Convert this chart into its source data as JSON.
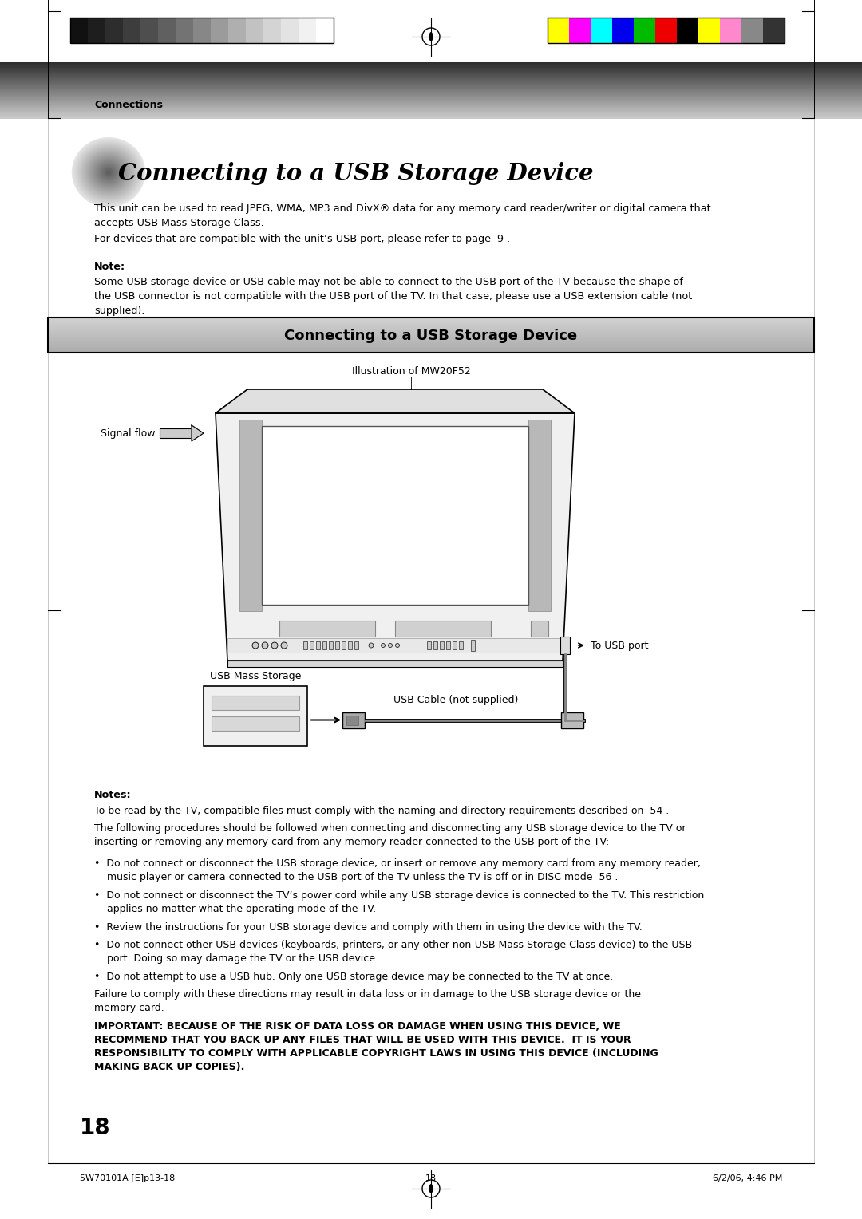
{
  "page_bg": "#ffffff",
  "connections_label": "Connections",
  "title_text": "Connecting to a USB Storage Device",
  "intro_text1": "This unit can be used to read JPEG, WMA, MP3 and DivX® data for any memory card reader/writer or digital camera that\naccepts USB Mass Storage Class.",
  "intro_text2": "For devices that are compatible with the unit’s USB port, please refer to page  9 .",
  "note_label": "Note:",
  "note_text": "Some USB storage device or USB cable may not be able to connect to the USB port of the TV because the shape of\nthe USB connector is not compatible with the USB port of the TV. In that case, please use a USB extension cable (not\nsupplied).",
  "section_box_text": "Connecting to a USB Storage Device",
  "illus_label": "Illustration of MW20F52",
  "signal_flow_label": "Signal flow",
  "usb_mass_label": "USB Mass Storage",
  "usb_cable_label": "USB Cable (not supplied)",
  "to_usb_label": "To USB port",
  "notes_bold": "Notes:",
  "notes_text1": "To be read by the TV, compatible files must comply with the naming and directory requirements described on  54 .",
  "notes_text2": "The following procedures should be followed when connecting and disconnecting any USB storage device to the TV or\ninserting or removing any memory card from any memory reader connected to the USB port of the TV:",
  "bullet1": "•  Do not connect or disconnect the USB storage device, or insert or remove any memory card from any memory reader,\n    music player or camera connected to the USB port of the TV unless the TV is off or in DISC mode  56 .",
  "bullet2": "•  Do not connect or disconnect the TV’s power cord while any USB storage device is connected to the TV. This restriction\n    applies no matter what the operating mode of the TV.",
  "bullet3": "•  Review the instructions for your USB storage device and comply with them in using the device with the TV.",
  "bullet4": "•  Do not connect other USB devices (keyboards, printers, or any other non-USB Mass Storage Class device) to the USB\n    port. Doing so may damage the TV or the USB device.",
  "bullet5": "•  Do not attempt to use a USB hub. Only one USB storage device may be connected to the TV at once.",
  "failure_text": "Failure to comply with these directions may result in data loss or in damage to the USB storage device or the\nmemory card.",
  "important_text": "IMPORTANT: BECAUSE OF THE RISK OF DATA LOSS OR DAMAGE WHEN USING THIS DEVICE, WE\nRECOMMEND THAT YOU BACK UP ANY FILES THAT WILL BE USED WITH THIS DEVICE.  IT IS YOUR\nRESPONSIBILITY TO COMPLY WITH APPLICABLE COPYRIGHT LAWS IN USING THIS DEVICE (INCLUDING\nMAKING BACK UP COPIES).",
  "page_num": "18",
  "footer_left": "5W70101A [E]p13-18",
  "footer_center": "18",
  "footer_right": "6/2/06, 4:46 PM",
  "grey_bars": [
    "#111111",
    "#1e1e1e",
    "#2d2d2d",
    "#3d3d3d",
    "#4e4e4e",
    "#606060",
    "#737373",
    "#878787",
    "#9b9b9b",
    "#afafaf",
    "#c2c2c2",
    "#d4d4d4",
    "#e3e3e3",
    "#f1f1f1",
    "#ffffff"
  ],
  "color_bars": [
    "#ffff00",
    "#ff00ff",
    "#00ffff",
    "#0000ee",
    "#00bb00",
    "#ee0000",
    "#000000",
    "#ffff00",
    "#ff88cc",
    "#888888",
    "#333333"
  ]
}
